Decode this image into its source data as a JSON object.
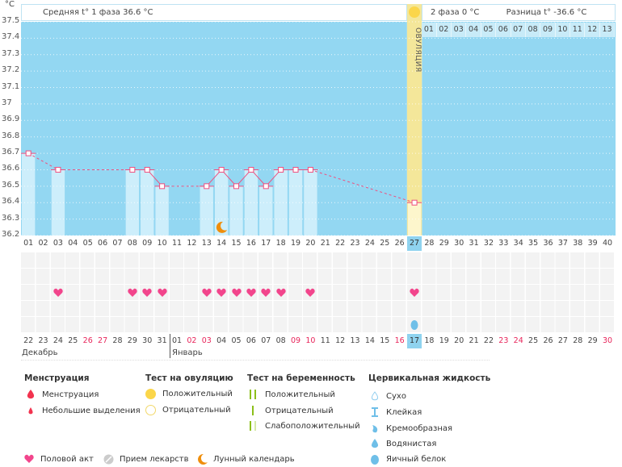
{
  "unit": "°C",
  "header": {
    "phase1": "Средняя t° 1 фаза 36.6 °C",
    "phase2": "2 фаза 0 °C",
    "diff": "Разница t° -36.6 °C",
    "ovulation": "ОВУЛЯЦИЯ"
  },
  "colors": {
    "bg": "#93d7f2",
    "bar": "#cdeefb",
    "line": "#ef4f7f",
    "ovulation": "#f4e79a",
    "heart": "#f2458c",
    "moon": "#ef8e0c"
  },
  "chart_data": {
    "type": "line",
    "ylabel": "°C",
    "ylim": [
      36.2,
      37.5
    ],
    "yticks": [
      "37.5",
      "37.4",
      "37.3",
      "37.2",
      "37.1",
      "37",
      "36.9",
      "36.8",
      "36.7",
      "36.6",
      "36.5",
      "36.4",
      "36.3",
      "36.2"
    ],
    "cycle_days": [
      "01",
      "02",
      "03",
      "04",
      "05",
      "06",
      "07",
      "08",
      "09",
      "10",
      "11",
      "12",
      "13",
      "14",
      "15",
      "16",
      "17",
      "18",
      "19",
      "20",
      "21",
      "22",
      "23",
      "24",
      "25",
      "26",
      "27",
      "28",
      "29",
      "30",
      "31",
      "32",
      "33",
      "34",
      "35",
      "36",
      "37",
      "38",
      "39",
      "40"
    ],
    "points": [
      {
        "day": 1,
        "t": 36.7
      },
      {
        "day": 3,
        "t": 36.6
      },
      {
        "day": 8,
        "t": 36.6
      },
      {
        "day": 9,
        "t": 36.6
      },
      {
        "day": 10,
        "t": 36.5
      },
      {
        "day": 13,
        "t": 36.5
      },
      {
        "day": 14,
        "t": 36.6
      },
      {
        "day": 15,
        "t": 36.5
      },
      {
        "day": 16,
        "t": 36.6
      },
      {
        "day": 17,
        "t": 36.5
      },
      {
        "day": 18,
        "t": 36.6
      },
      {
        "day": 19,
        "t": 36.6
      },
      {
        "day": 20,
        "t": 36.6
      },
      {
        "day": 27,
        "t": 36.4
      }
    ],
    "ovulation_day": 27,
    "moon_day": 14,
    "phase2_days": [
      "01",
      "02",
      "03",
      "04",
      "05",
      "06",
      "07",
      "08",
      "09",
      "10",
      "11",
      "12",
      "13"
    ]
  },
  "intercourse_days": [
    3,
    8,
    9,
    10,
    13,
    14,
    15,
    16,
    17,
    18,
    20,
    27
  ],
  "fluid_days": [
    27
  ],
  "dates": [
    {
      "d": "22"
    },
    {
      "d": "23"
    },
    {
      "d": "24"
    },
    {
      "d": "25"
    },
    {
      "d": "26",
      "red": true
    },
    {
      "d": "27",
      "red": true
    },
    {
      "d": "28"
    },
    {
      "d": "29"
    },
    {
      "d": "30"
    },
    {
      "d": "31"
    },
    {
      "d": "01"
    },
    {
      "d": "02",
      "red": true
    },
    {
      "d": "03",
      "red": true
    },
    {
      "d": "04"
    },
    {
      "d": "05"
    },
    {
      "d": "06"
    },
    {
      "d": "07"
    },
    {
      "d": "08"
    },
    {
      "d": "09",
      "red": true
    },
    {
      "d": "10",
      "red": true
    },
    {
      "d": "11"
    },
    {
      "d": "12"
    },
    {
      "d": "13"
    },
    {
      "d": "14"
    },
    {
      "d": "15"
    },
    {
      "d": "16",
      "red": true
    },
    {
      "d": "17"
    },
    {
      "d": "18"
    },
    {
      "d": "19"
    },
    {
      "d": "20"
    },
    {
      "d": "21"
    },
    {
      "d": "22"
    },
    {
      "d": "23",
      "red": true
    },
    {
      "d": "24",
      "red": true
    },
    {
      "d": "25"
    },
    {
      "d": "26"
    },
    {
      "d": "27"
    },
    {
      "d": "28"
    },
    {
      "d": "29"
    },
    {
      "d": "30",
      "red": true
    }
  ],
  "months": {
    "dec": "Декабрь",
    "jan": "Январь"
  },
  "legend": {
    "menstruation": {
      "title": "Менструация",
      "items": [
        "Менструация",
        "Небольшие выделения"
      ]
    },
    "ovulation_test": {
      "title": "Тест на овуляцию",
      "items": [
        "Положительный",
        "Отрицательный"
      ]
    },
    "pregnancy_test": {
      "title": "Тест на беременность",
      "items": [
        "Положительный",
        "Отрицательный",
        "Слабоположительный"
      ]
    },
    "cervical": {
      "title": "Цервикальная жидкость",
      "items": [
        "Сухо",
        "Клейкая",
        "Кремообразная",
        "Водянистая",
        "Яичный белок"
      ]
    },
    "other": [
      "Половой акт",
      "Прием лекарств",
      "Лунный календарь"
    ]
  }
}
